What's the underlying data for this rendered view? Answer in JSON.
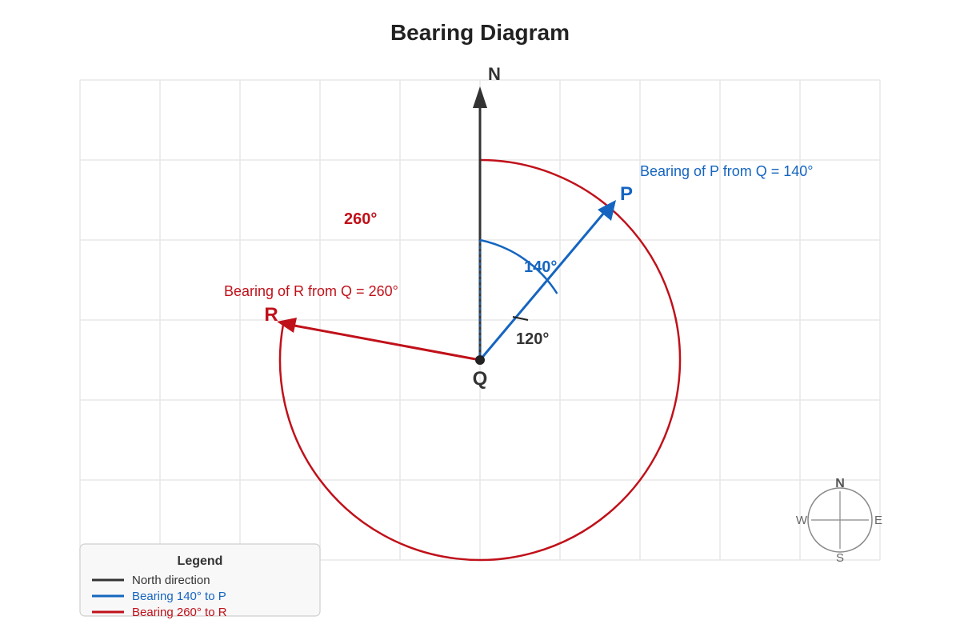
{
  "title": "Bearing Diagram",
  "north_label": "N",
  "point_q": "Q",
  "point_p": "P",
  "point_r": "R",
  "bearing_p": {
    "text": "Bearing of P from Q = 140°",
    "angle_label": "140°",
    "degrees": 140
  },
  "bearing_r": {
    "text": "Bearing of R from Q = 260°",
    "angle_label": "260°",
    "degrees": 260
  },
  "between_angle": {
    "label": "120°",
    "degrees": 120
  },
  "compass": {
    "n": "N",
    "e": "E",
    "s": "S",
    "w": "W"
  },
  "legend": {
    "title": "Legend",
    "items": [
      {
        "label": "North direction",
        "color": "#333333"
      },
      {
        "label": "Bearing 140° to P",
        "color": "#1565c0"
      },
      {
        "label": "Bearing 260° to R",
        "color": "#c0111a"
      }
    ]
  },
  "colors": {
    "north": "#333333",
    "p": "#1565c0",
    "r": "#c0111a"
  }
}
